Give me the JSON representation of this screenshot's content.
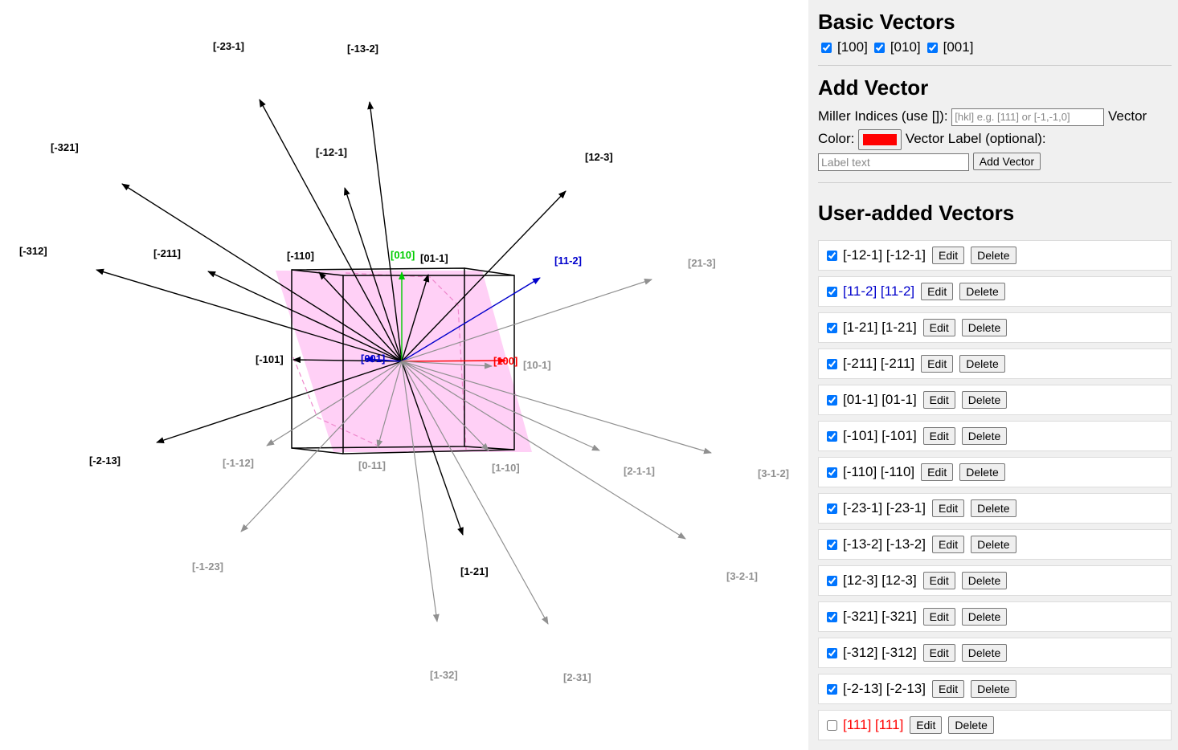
{
  "panel": {
    "basic_title": "Basic Vectors",
    "basic_vectors": [
      {
        "label": "[100]",
        "checked": true
      },
      {
        "label": "[010]",
        "checked": true
      },
      {
        "label": "[001]",
        "checked": true
      }
    ],
    "add_title": "Add Vector",
    "miller_label": "Miller Indices (use []):",
    "miller_placeholder": "[hkl] e.g. [111] or [-1,-1,0]",
    "vector_color_label_1": "Vector",
    "vector_color_label_2": "Color:",
    "color_value": "#ff0000",
    "vector_label_label": "Vector Label (optional):",
    "label_placeholder": "Label text",
    "add_button": "Add Vector",
    "user_title": "User-added Vectors",
    "edit_label": "Edit",
    "delete_label": "Delete",
    "user_vectors": [
      {
        "text": "[-12-1] [-12-1]",
        "checked": true,
        "color": "#000000"
      },
      {
        "text": "[11-2] [11-2]",
        "checked": true,
        "color": "#0000cc"
      },
      {
        "text": "[1-21] [1-21]",
        "checked": true,
        "color": "#000000"
      },
      {
        "text": "[-211] [-211]",
        "checked": true,
        "color": "#000000"
      },
      {
        "text": "[01-1] [01-1]",
        "checked": true,
        "color": "#000000"
      },
      {
        "text": "[-101] [-101]",
        "checked": true,
        "color": "#000000"
      },
      {
        "text": "[-110] [-110]",
        "checked": true,
        "color": "#000000"
      },
      {
        "text": "[-23-1] [-23-1]",
        "checked": true,
        "color": "#000000"
      },
      {
        "text": "[-13-2] [-13-2]",
        "checked": true,
        "color": "#000000"
      },
      {
        "text": "[12-3] [12-3]",
        "checked": true,
        "color": "#000000"
      },
      {
        "text": "[-321] [-321]",
        "checked": true,
        "color": "#000000"
      },
      {
        "text": "[-312] [-312]",
        "checked": true,
        "color": "#000000"
      },
      {
        "text": "[-2-13] [-2-13]",
        "checked": true,
        "color": "#000000"
      },
      {
        "text": "[111] [111]",
        "checked": false,
        "color": "#ff0000"
      }
    ]
  },
  "scene": {
    "labels": [
      "[-23-1]",
      "[-13-2]",
      "[-321]",
      "[-12-1]",
      "[12-3]",
      "[-312]",
      "[-211]",
      "[-110]",
      "[010]",
      "[01-1]",
      "[11-2]",
      "[21-3]",
      "[-101]",
      "[001]",
      "[100]",
      "[10-1]",
      "[-2-13]",
      "[-1-12]",
      "[0-11]",
      "[1-10]",
      "[2-1-1]",
      "[3-1-2]",
      "[-1-23]",
      "[1-21]",
      "[3-2-1]",
      "[1-32]",
      "[2-31]"
    ],
    "colors": {
      "front": "#000000",
      "back": "#909090",
      "x_axis": "#ff0000",
      "y_axis": "#00cc00",
      "z_axis": "#0000cc",
      "plane": "#ffaaee"
    }
  }
}
